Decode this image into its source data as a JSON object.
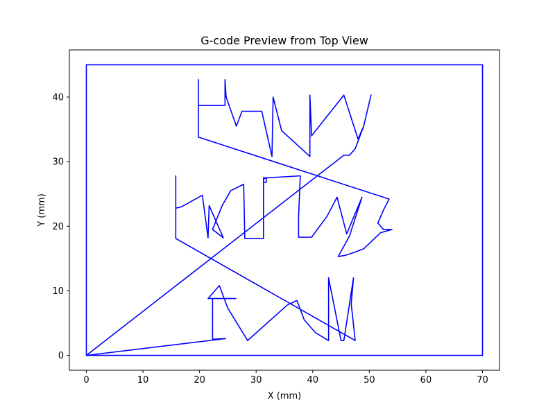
{
  "chart_data": {
    "type": "line",
    "title": "G-code Preview from Top View",
    "xlabel": "X (mm)",
    "ylabel": "Y (mm)",
    "xlim": [
      -3,
      73
    ],
    "ylim": [
      -2.3,
      47.3
    ],
    "xticks": [
      0,
      10,
      20,
      30,
      40,
      50,
      60,
      70
    ],
    "yticks": [
      0,
      10,
      20,
      30,
      40
    ],
    "grid": false,
    "series": [
      {
        "color": "#0000ff",
        "points": [
          [
            0,
            0
          ],
          [
            0,
            45
          ],
          [
            70,
            45
          ],
          [
            70,
            0
          ],
          [
            0,
            0
          ],
          [
            45.5,
            31
          ],
          [
            46.5,
            31
          ],
          [
            47.5,
            32
          ],
          [
            49,
            35.5
          ],
          [
            50.3,
            40.3
          ],
          [
            49,
            35.5
          ],
          [
            48,
            33.5
          ],
          [
            45.5,
            40.3
          ],
          [
            42.5,
            37
          ],
          [
            39.8,
            34
          ],
          [
            39.5,
            40.3
          ],
          [
            39.5,
            30.8
          ],
          [
            34.5,
            34.8
          ],
          [
            33,
            40
          ],
          [
            32.8,
            30.8
          ],
          [
            31,
            37.8
          ],
          [
            27.5,
            37.8
          ],
          [
            26.5,
            35.5
          ],
          [
            24.7,
            40
          ],
          [
            24.5,
            42.7
          ],
          [
            24.5,
            38.7
          ],
          [
            19.8,
            38.7
          ],
          [
            19.8,
            42.7
          ],
          [
            19.8,
            33.8
          ],
          [
            53.5,
            24.2
          ],
          [
            52.5,
            22.5
          ],
          [
            51.5,
            20.5
          ],
          [
            52.5,
            19.5
          ],
          [
            54,
            19.5
          ],
          [
            52,
            19
          ],
          [
            49,
            16.5
          ],
          [
            47.5,
            16
          ],
          [
            45.8,
            15.5
          ],
          [
            44.5,
            15.3
          ],
          [
            46.5,
            18.5
          ],
          [
            48.7,
            24.5
          ],
          [
            46,
            18.8
          ],
          [
            44.3,
            24.5
          ],
          [
            42.5,
            21.5
          ],
          [
            39.8,
            18.3
          ],
          [
            37.5,
            18.3
          ],
          [
            37.5,
            21.5
          ],
          [
            37.8,
            27.8
          ],
          [
            32,
            27.5
          ],
          [
            31.3,
            27.5
          ],
          [
            31.3,
            26.8
          ],
          [
            31.8,
            26.8
          ],
          [
            31.8,
            27.5
          ],
          [
            31.3,
            27.3
          ],
          [
            31.3,
            18.1
          ],
          [
            28,
            18.1
          ],
          [
            27.8,
            26.5
          ],
          [
            25.5,
            25.5
          ],
          [
            24,
            23.2
          ],
          [
            22.3,
            19.5
          ],
          [
            24.2,
            18.2
          ],
          [
            21.7,
            23.2
          ],
          [
            21.5,
            18.2
          ],
          [
            20.5,
            24.8
          ],
          [
            16.8,
            23
          ],
          [
            15.8,
            22.8
          ],
          [
            15.8,
            27.8
          ],
          [
            15.8,
            18.1
          ],
          [
            47.5,
            2.3
          ],
          [
            46.8,
            8
          ],
          [
            47.2,
            12
          ],
          [
            45.5,
            2.3
          ],
          [
            45,
            2.3
          ],
          [
            42.8,
            12
          ],
          [
            42.8,
            2.3
          ],
          [
            40.5,
            3.5
          ],
          [
            38.5,
            5.5
          ],
          [
            37.2,
            8.5
          ],
          [
            35.5,
            7.8
          ],
          [
            28.5,
            2.3
          ],
          [
            25,
            7.3
          ],
          [
            23.5,
            10.8
          ],
          [
            21.5,
            8.8
          ],
          [
            22.5,
            8.8
          ],
          [
            26.4,
            8.8
          ],
          [
            22.3,
            8.8
          ],
          [
            22.3,
            2.5
          ],
          [
            24.6,
            2.6
          ],
          [
            0,
            0
          ]
        ]
      }
    ]
  }
}
